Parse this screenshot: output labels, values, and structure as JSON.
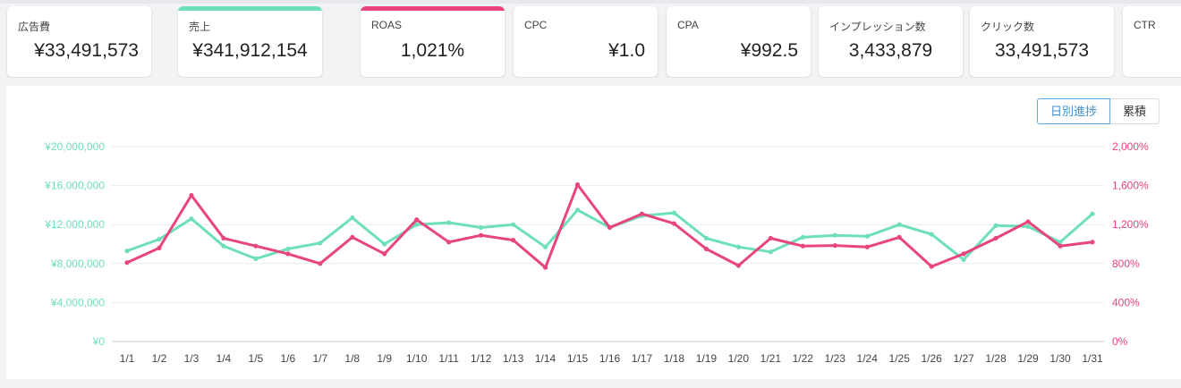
{
  "kpis": [
    {
      "label": "広告費",
      "value": "¥33,491,573",
      "accent": ""
    },
    {
      "label": "売上",
      "value": "¥341,912,154",
      "accent": "#6ee0b8"
    },
    {
      "label": "ROAS",
      "value": "1,021%",
      "accent": "#e8457a"
    },
    {
      "label": "CPC",
      "value": "¥1.0",
      "accent": ""
    },
    {
      "label": "CPA",
      "value": "¥992.5",
      "accent": ""
    },
    {
      "label": "インプレッション数",
      "value": "3,433,879",
      "accent": ""
    },
    {
      "label": "クリック数",
      "value": "33,491,573",
      "accent": ""
    },
    {
      "label": "CTR",
      "value": "",
      "accent": ""
    }
  ],
  "toggle": {
    "daily": "日別進捗",
    "cumulative": "累積"
  },
  "colors": {
    "sales": "#6ee0b8",
    "roas": "#e8457a",
    "grid": "#e9ebee",
    "axis": "#888888"
  },
  "chart_data": {
    "type": "line",
    "categories": [
      "1/1",
      "1/2",
      "1/3",
      "1/4",
      "1/5",
      "1/6",
      "1/7",
      "1/8",
      "1/9",
      "1/10",
      "1/11",
      "1/12",
      "1/13",
      "1/14",
      "1/15",
      "1/16",
      "1/17",
      "1/18",
      "1/19",
      "1/20",
      "1/21",
      "1/22",
      "1/23",
      "1/24",
      "1/25",
      "1/26",
      "1/27",
      "1/28",
      "1/29",
      "1/30",
      "1/31"
    ],
    "series": [
      {
        "axis": "left",
        "color": "#6ee0b8",
        "values": [
          9300000,
          10500000,
          12600000,
          9800000,
          8500000,
          9500000,
          10100000,
          12700000,
          10000000,
          12000000,
          12200000,
          11700000,
          12000000,
          9700000,
          13500000,
          11700000,
          12900000,
          13200000,
          10600000,
          9700000,
          9200000,
          10700000,
          10900000,
          10800000,
          12000000,
          11000000,
          8400000,
          11900000,
          11800000,
          10200000,
          13100000
        ]
      },
      {
        "axis": "right",
        "color": "#e8457a",
        "values": [
          810,
          960,
          1500,
          1060,
          980,
          900,
          800,
          1070,
          900,
          1250,
          1020,
          1090,
          1040,
          760,
          1610,
          1170,
          1310,
          1210,
          950,
          780,
          1060,
          980,
          985,
          970,
          1070,
          770,
          900,
          1060,
          1230,
          980,
          1020
        ]
      }
    ],
    "y_left": {
      "ticks": [
        "¥20,000,000",
        "¥16,000,000",
        "¥12,000,000",
        "¥8,000,000",
        "¥4,000,000",
        "¥0"
      ],
      "ylim": [
        0,
        20000000
      ]
    },
    "y_right": {
      "ticks": [
        "2,000%",
        "1,600%",
        "1,200%",
        "800%",
        "400%",
        "0%"
      ],
      "ylim": [
        0,
        2000
      ]
    },
    "grid": true
  }
}
